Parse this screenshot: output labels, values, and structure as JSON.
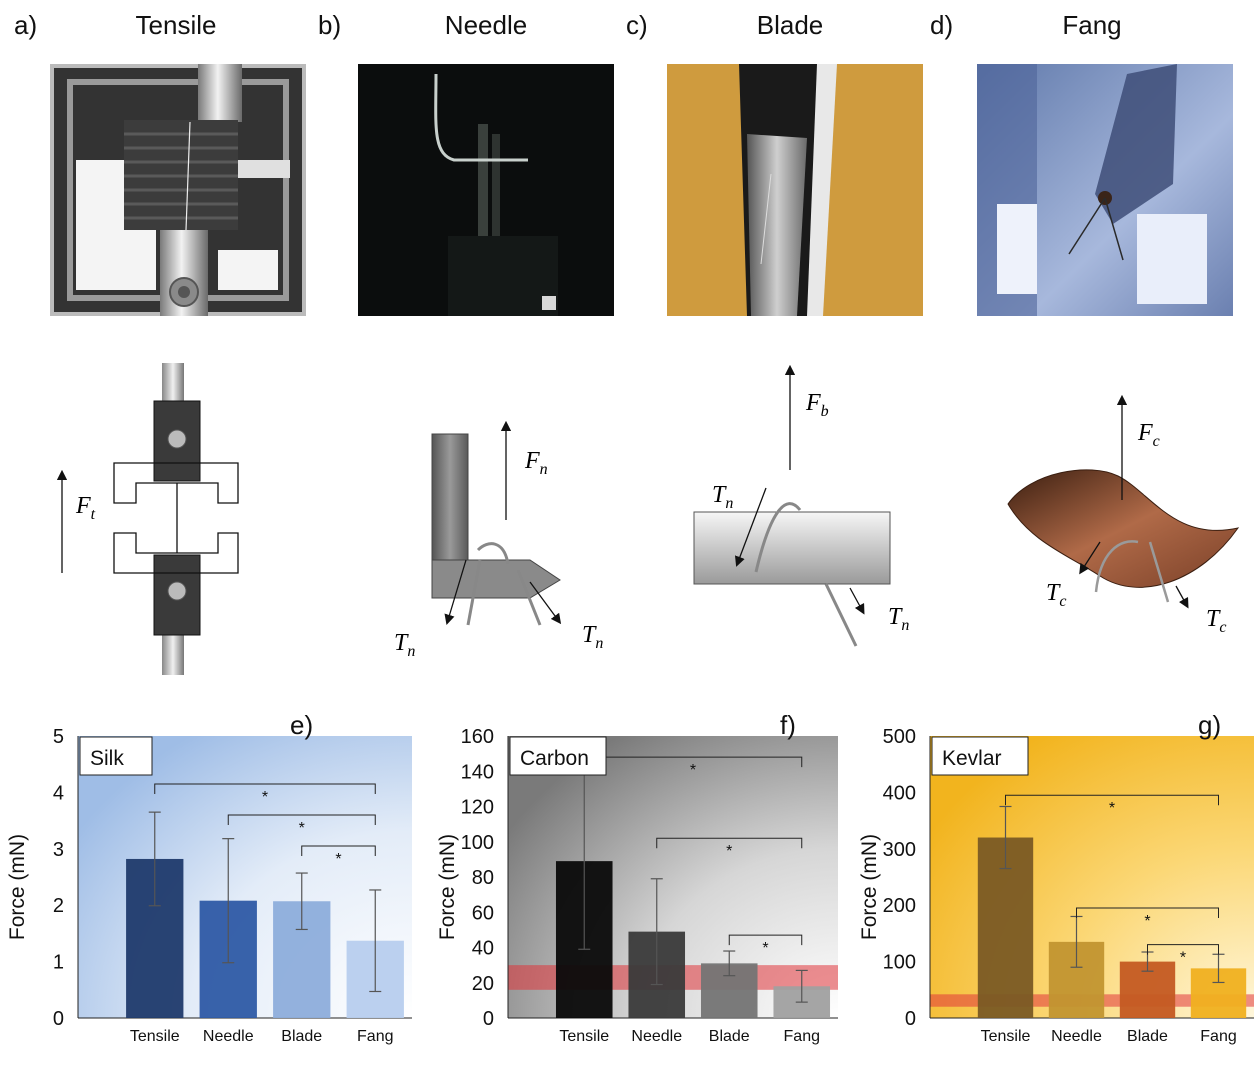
{
  "panels": {
    "a": {
      "letter": "a)",
      "title": "Tensile",
      "force_label": "F",
      "force_sub": "t"
    },
    "b": {
      "letter": "b)",
      "title": "Needle",
      "force_label": "F",
      "force_sub": "n",
      "tension_label": "T",
      "tension_sub": "n"
    },
    "c": {
      "letter": "c)",
      "title": "Blade",
      "force_label": "F",
      "force_sub": "b",
      "tension_label": "T",
      "tension_sub": "n"
    },
    "d": {
      "letter": "d)",
      "title": "Fang",
      "force_label": "F",
      "force_sub": "c",
      "tension_label": "T",
      "tension_sub": "c"
    }
  },
  "colors": {
    "silk_series": [
      "#1f3a6b",
      "#2e5aa5",
      "#8daddb",
      "#b7cdee"
    ],
    "carbon_series": [
      "#0a0a0a",
      "#3a3a3a",
      "#747474",
      "#a0a0a0"
    ],
    "kevlar_series": [
      "#7a5a24",
      "#c29530",
      "#c45a22",
      "#f0b020"
    ],
    "red_band": "#e0343a"
  },
  "chart_data": [
    {
      "type": "bar",
      "panel": "e)",
      "legend_label": "Silk",
      "ylabel": "Force (mN)",
      "categories": [
        "Tensile",
        "Needle",
        "Blade",
        "Fang"
      ],
      "values": [
        2.82,
        2.08,
        2.07,
        1.37
      ],
      "errors": [
        0.83,
        1.1,
        0.5,
        0.9
      ],
      "ylim": [
        0,
        5
      ],
      "yticks": [
        0,
        1,
        2,
        3,
        4,
        5
      ],
      "significance": [
        {
          "from": 0,
          "to": 3,
          "label": "*",
          "y": 4.15
        },
        {
          "from": 1,
          "to": 3,
          "label": "*",
          "y": 3.6
        },
        {
          "from": 2,
          "to": 3,
          "label": "*",
          "y": 3.05
        }
      ]
    },
    {
      "type": "bar",
      "panel": "f)",
      "legend_label": "Carbon",
      "ylabel": "Force (mN)",
      "categories": [
        "Tensile",
        "Needle",
        "Blade",
        "Fang"
      ],
      "values": [
        89,
        49,
        31,
        18
      ],
      "errors": [
        50,
        30,
        7,
        9
      ],
      "ylim": [
        0,
        160
      ],
      "yticks": [
        0,
        20,
        40,
        60,
        80,
        100,
        120,
        140,
        160
      ],
      "band": [
        16,
        30
      ],
      "significance": [
        {
          "from": 0,
          "to": 3,
          "label": "*",
          "y": 148
        },
        {
          "from": 1,
          "to": 3,
          "label": "*",
          "y": 102
        },
        {
          "from": 2,
          "to": 3,
          "label": "*",
          "y": 47
        }
      ]
    },
    {
      "type": "bar",
      "panel": "g)",
      "legend_label": "Kevlar",
      "ylabel": "Force (mN)",
      "categories": [
        "Tensile",
        "Needle",
        "Blade",
        "Fang"
      ],
      "values": [
        320,
        135,
        100,
        88
      ],
      "errors": [
        55,
        45,
        17,
        25
      ],
      "ylim": [
        0,
        500
      ],
      "yticks": [
        0,
        100,
        200,
        300,
        400,
        500
      ],
      "band": [
        20,
        42
      ],
      "significance": [
        {
          "from": 0,
          "to": 3,
          "label": "*",
          "y": 395
        },
        {
          "from": 1,
          "to": 3,
          "label": "*",
          "y": 195
        },
        {
          "from": 2,
          "to": 3,
          "label": "*",
          "y": 130
        }
      ]
    }
  ]
}
